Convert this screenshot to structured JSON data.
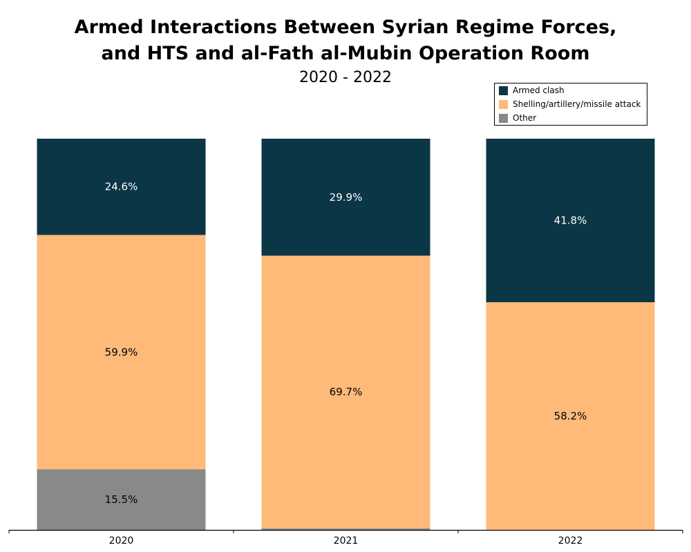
{
  "chart_data": {
    "type": "bar",
    "stacked": true,
    "title": "Armed Interactions Between Syrian Regime Forces, and HTS and al-Fath al-Mubin Operation Room",
    "title_lines": [
      "Armed Interactions Between Syrian Regime Forces,",
      "and HTS and al-Fath al-Mubin Operation Room"
    ],
    "subtitle": "2020 - 2022",
    "xlabel": "",
    "ylabel": "",
    "ylim": [
      0,
      100
    ],
    "grid": false,
    "legend_position": "top-right",
    "categories": [
      "2020",
      "2021",
      "2022"
    ],
    "series": [
      {
        "name": "Armed clash",
        "color": "#0b3646",
        "label_color": "#ffffff",
        "values": [
          24.6,
          29.9,
          41.8
        ],
        "labels": [
          "24.6%",
          "29.9%",
          "41.8%"
        ]
      },
      {
        "name": "Shelling/artillery/missile attack",
        "color": "#ffb979",
        "label_color": "#000000",
        "values": [
          59.9,
          69.7,
          58.2
        ],
        "labels": [
          "59.9%",
          "69.7%",
          "58.2%"
        ]
      },
      {
        "name": "Other",
        "color": "#898989",
        "label_color": "#000000",
        "values": [
          15.5,
          0.4,
          0
        ],
        "labels": [
          "15.5%",
          "",
          ""
        ]
      }
    ]
  }
}
